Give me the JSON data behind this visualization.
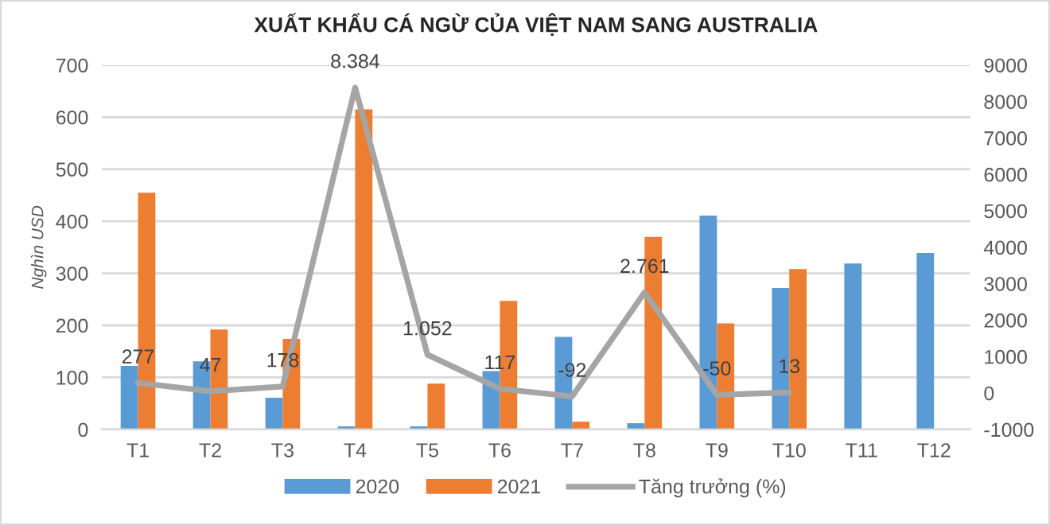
{
  "chart_data": {
    "type": "bar",
    "title": "XUẤT KHẨU CÁ NGỪ CỦA VIỆT NAM SANG AUSTRALIA",
    "ylabel": "Nghìn USD",
    "categories": [
      "T1",
      "T2",
      "T3",
      "T4",
      "T5",
      "T6",
      "T7",
      "T8",
      "T9",
      "T10",
      "T11",
      "T12"
    ],
    "series": [
      {
        "name": "2020",
        "color": "#5b9bd5",
        "values": [
          122,
          131,
          61,
          6,
          6,
          112,
          178,
          12,
          411,
          272,
          319,
          339
        ]
      },
      {
        "name": "2021",
        "color": "#ed7d31",
        "values": [
          455,
          192,
          174,
          615,
          88,
          247,
          15,
          370,
          204,
          308,
          null,
          null
        ]
      },
      {
        "name": "Tăng trưởng (%)",
        "type": "line",
        "axis": "y2",
        "color": "#a5a5a5",
        "values": [
          277,
          47,
          178,
          8384,
          1052,
          117,
          -92,
          2761,
          -50,
          13,
          null,
          null
        ],
        "value_labels": [
          "277",
          "47",
          "178",
          "8.384",
          "1.052",
          "117",
          "-92",
          "2.761",
          "-50",
          "13",
          null,
          null
        ]
      }
    ],
    "ylim": [
      0,
      700
    ],
    "yticks": [
      0,
      100,
      200,
      300,
      400,
      500,
      600,
      700
    ],
    "y2lim": [
      -1000,
      9000
    ],
    "y2ticks": [
      -1000,
      0,
      1000,
      2000,
      3000,
      4000,
      5000,
      6000,
      7000,
      8000,
      9000
    ],
    "grid": "y",
    "legend": "bottom"
  }
}
